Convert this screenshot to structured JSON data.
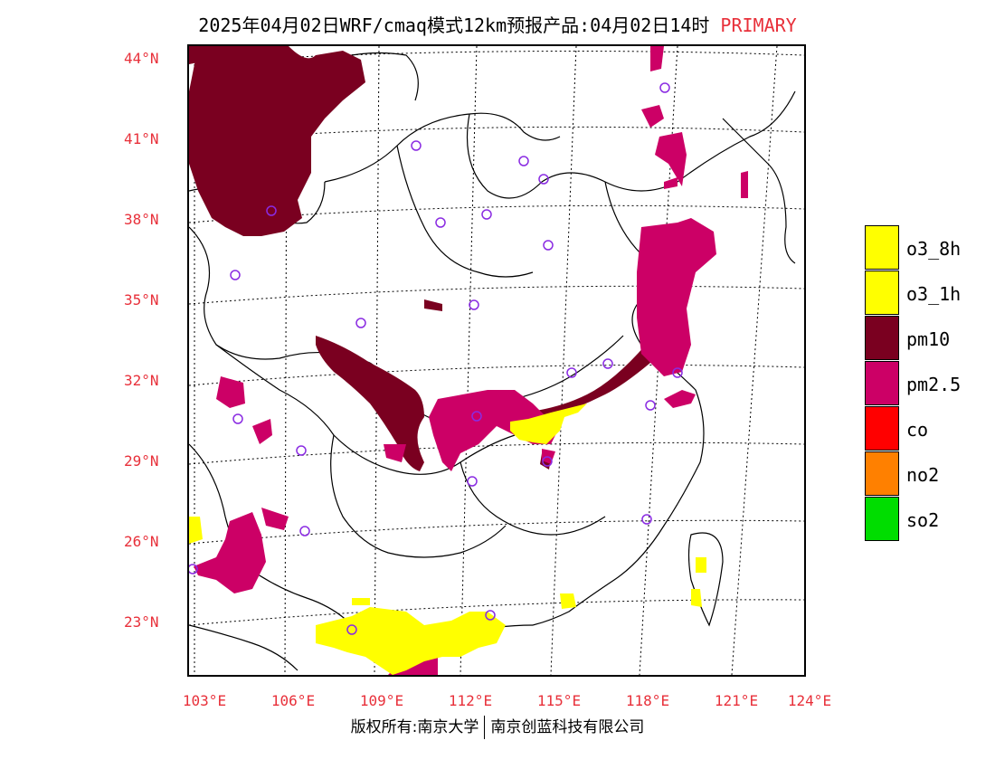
{
  "title": "2025年04月02日WRF/cmaq模式12km预报产品:04月02日14时",
  "title_tag": "PRIMARY",
  "latitude_labels": [
    "44°N",
    "41°N",
    "38°N",
    "35°N",
    "32°N",
    "29°N",
    "26°N",
    "23°N"
  ],
  "longitude_labels": [
    "103°E",
    "106°E",
    "109°E",
    "112°E",
    "115°E",
    "118°E",
    "121°E",
    "124°E"
  ],
  "legend": [
    {
      "label": "o3_8h",
      "color": "#ffff00"
    },
    {
      "label": "o3_1h",
      "color": "#ffff00"
    },
    {
      "label": "pm10",
      "color": "#7a0020"
    },
    {
      "label": "pm2.5",
      "color": "#cc0066"
    },
    {
      "label": "co",
      "color": "#ff0000"
    },
    {
      "label": "no2",
      "color": "#ff8000"
    },
    {
      "label": "so2",
      "color": "#00dd00"
    }
  ],
  "footer_left": "版权所有:南京大学",
  "footer_right": "南京创蓝科技有限公司",
  "colors": {
    "pm10": "#7a0020",
    "pm25": "#cc0066",
    "o3": "#ffff00",
    "station": "#8a2be2",
    "label": "#e8303a"
  }
}
